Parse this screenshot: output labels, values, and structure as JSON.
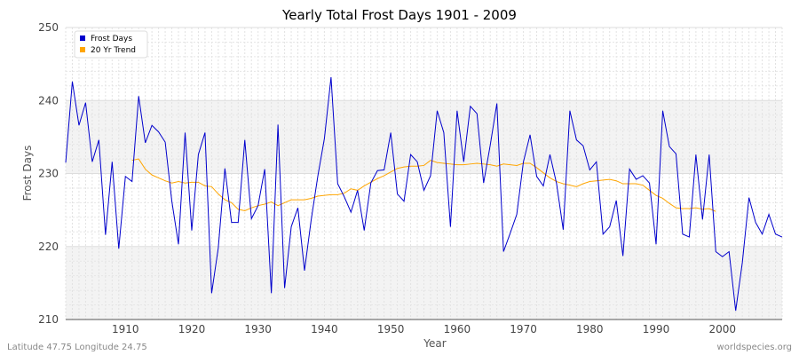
{
  "chart_data": {
    "type": "line",
    "title": "Yearly Total Frost Days 1901 - 2009",
    "xlabel": "Year",
    "ylabel": "Frost Days",
    "xlim": [
      1901,
      2009
    ],
    "ylim": [
      210,
      250
    ],
    "x_ticks": [
      1910,
      1920,
      1930,
      1940,
      1950,
      1960,
      1970,
      1980,
      1990,
      2000
    ],
    "y_ticks": [
      210,
      220,
      230,
      240,
      250
    ],
    "grid": true,
    "legend_position": "top-left",
    "series": [
      {
        "name": "Frost Days",
        "color": "#0000cc",
        "x": [
          1901,
          1902,
          1903,
          1904,
          1905,
          1906,
          1907,
          1908,
          1909,
          1910,
          1911,
          1912,
          1913,
          1914,
          1915,
          1916,
          1917,
          1918,
          1919,
          1920,
          1921,
          1922,
          1923,
          1924,
          1925,
          1926,
          1927,
          1928,
          1929,
          1930,
          1931,
          1932,
          1933,
          1934,
          1935,
          1936,
          1937,
          1938,
          1939,
          1940,
          1941,
          1942,
          1943,
          1944,
          1945,
          1946,
          1947,
          1948,
          1949,
          1950,
          1951,
          1952,
          1953,
          1954,
          1955,
          1956,
          1957,
          1958,
          1959,
          1960,
          1961,
          1962,
          1963,
          1964,
          1965,
          1966,
          1967,
          1968,
          1969,
          1970,
          1971,
          1972,
          1973,
          1974,
          1975,
          1976,
          1977,
          1978,
          1979,
          1980,
          1981,
          1982,
          1983,
          1984,
          1985,
          1986,
          1987,
          1988,
          1989,
          1990,
          1991,
          1992,
          1993,
          1994,
          1995,
          1996,
          1997,
          1998,
          1999,
          2000,
          2001,
          2002,
          2003,
          2004,
          2005,
          2006,
          2007,
          2008,
          2009
        ],
        "values": [
          231.5,
          242.6,
          236.6,
          239.7,
          231.6,
          234.6,
          221.6,
          231.6,
          219.7,
          229.6,
          228.9,
          240.6,
          234.2,
          236.6,
          235.7,
          234.3,
          226.2,
          220.3,
          235.6,
          222.2,
          232.6,
          235.6,
          213.6,
          219.8,
          230.7,
          223.3,
          223.3,
          234.6,
          223.8,
          225.6,
          230.6,
          213.6,
          236.7,
          214.3,
          222.7,
          225.3,
          216.7,
          223.6,
          229.6,
          234.8,
          243.2,
          228.6,
          226.8,
          224.7,
          227.7,
          222.2,
          228.7,
          230.4,
          230.5,
          235.6,
          227.2,
          226.2,
          232.6,
          231.6,
          227.7,
          229.7,
          238.6,
          235.6,
          222.7,
          238.6,
          231.6,
          239.2,
          238.2,
          228.7,
          233.9,
          239.6,
          219.3,
          221.8,
          224.4,
          231.6,
          235.3,
          229.6,
          228.3,
          232.6,
          228.6,
          222.3,
          238.6,
          234.6,
          233.8,
          230.5,
          231.6,
          221.7,
          222.7,
          226.3,
          218.7,
          230.6,
          229.2,
          229.7,
          228.7,
          220.3,
          238.6,
          233.7,
          232.7,
          221.7,
          221.3,
          232.6,
          223.7,
          232.6,
          219.3,
          218.6,
          219.3,
          211.2,
          217.8,
          226.7,
          223.3,
          221.7,
          224.4,
          221.7,
          221.3
        ]
      },
      {
        "name": "20 Yr Trend",
        "color": "#ffa500",
        "x": [
          1911,
          1912,
          1913,
          1914,
          1915,
          1916,
          1917,
          1918,
          1919,
          1920,
          1921,
          1922,
          1923,
          1924,
          1925,
          1926,
          1927,
          1928,
          1929,
          1930,
          1931,
          1932,
          1933,
          1934,
          1935,
          1936,
          1937,
          1938,
          1939,
          1940,
          1941,
          1942,
          1943,
          1944,
          1945,
          1946,
          1947,
          1948,
          1949,
          1950,
          1951,
          1952,
          1953,
          1954,
          1955,
          1956,
          1957,
          1958,
          1959,
          1960,
          1961,
          1962,
          1963,
          1964,
          1965,
          1966,
          1967,
          1968,
          1969,
          1970,
          1971,
          1972,
          1973,
          1974,
          1975,
          1976,
          1977,
          1978,
          1979,
          1980,
          1981,
          1982,
          1983,
          1984,
          1985,
          1986,
          1987,
          1988,
          1989,
          1990,
          1991,
          1992,
          1993,
          1994,
          1995,
          1996,
          1997,
          1998,
          1999
        ],
        "values": [
          231.8,
          232.0,
          230.6,
          229.8,
          229.4,
          229.0,
          228.7,
          228.9,
          228.7,
          228.8,
          228.8,
          228.3,
          228.2,
          227.2,
          226.4,
          226.0,
          225.1,
          224.9,
          225.3,
          225.6,
          225.8,
          226.1,
          225.6,
          226.0,
          226.4,
          226.4,
          226.4,
          226.6,
          226.9,
          227.0,
          227.1,
          227.1,
          227.3,
          227.9,
          227.7,
          228.3,
          228.8,
          229.3,
          229.7,
          230.2,
          230.7,
          230.9,
          231.0,
          231.0,
          231.1,
          231.8,
          231.5,
          231.4,
          231.3,
          231.2,
          231.2,
          231.3,
          231.4,
          231.3,
          231.2,
          231.0,
          231.3,
          231.2,
          231.1,
          231.4,
          231.4,
          230.8,
          230.1,
          229.4,
          228.9,
          228.6,
          228.4,
          228.2,
          228.6,
          228.9,
          229.0,
          229.1,
          229.2,
          229.0,
          228.6,
          228.6,
          228.6,
          228.4,
          227.7,
          227.0,
          226.6,
          225.9,
          225.3,
          225.2,
          225.2,
          225.3,
          225.1,
          225.2,
          224.8
        ]
      }
    ]
  },
  "footer": {
    "location": "Latitude 47.75 Longitude 24.75",
    "site": "worldspecies.org"
  }
}
